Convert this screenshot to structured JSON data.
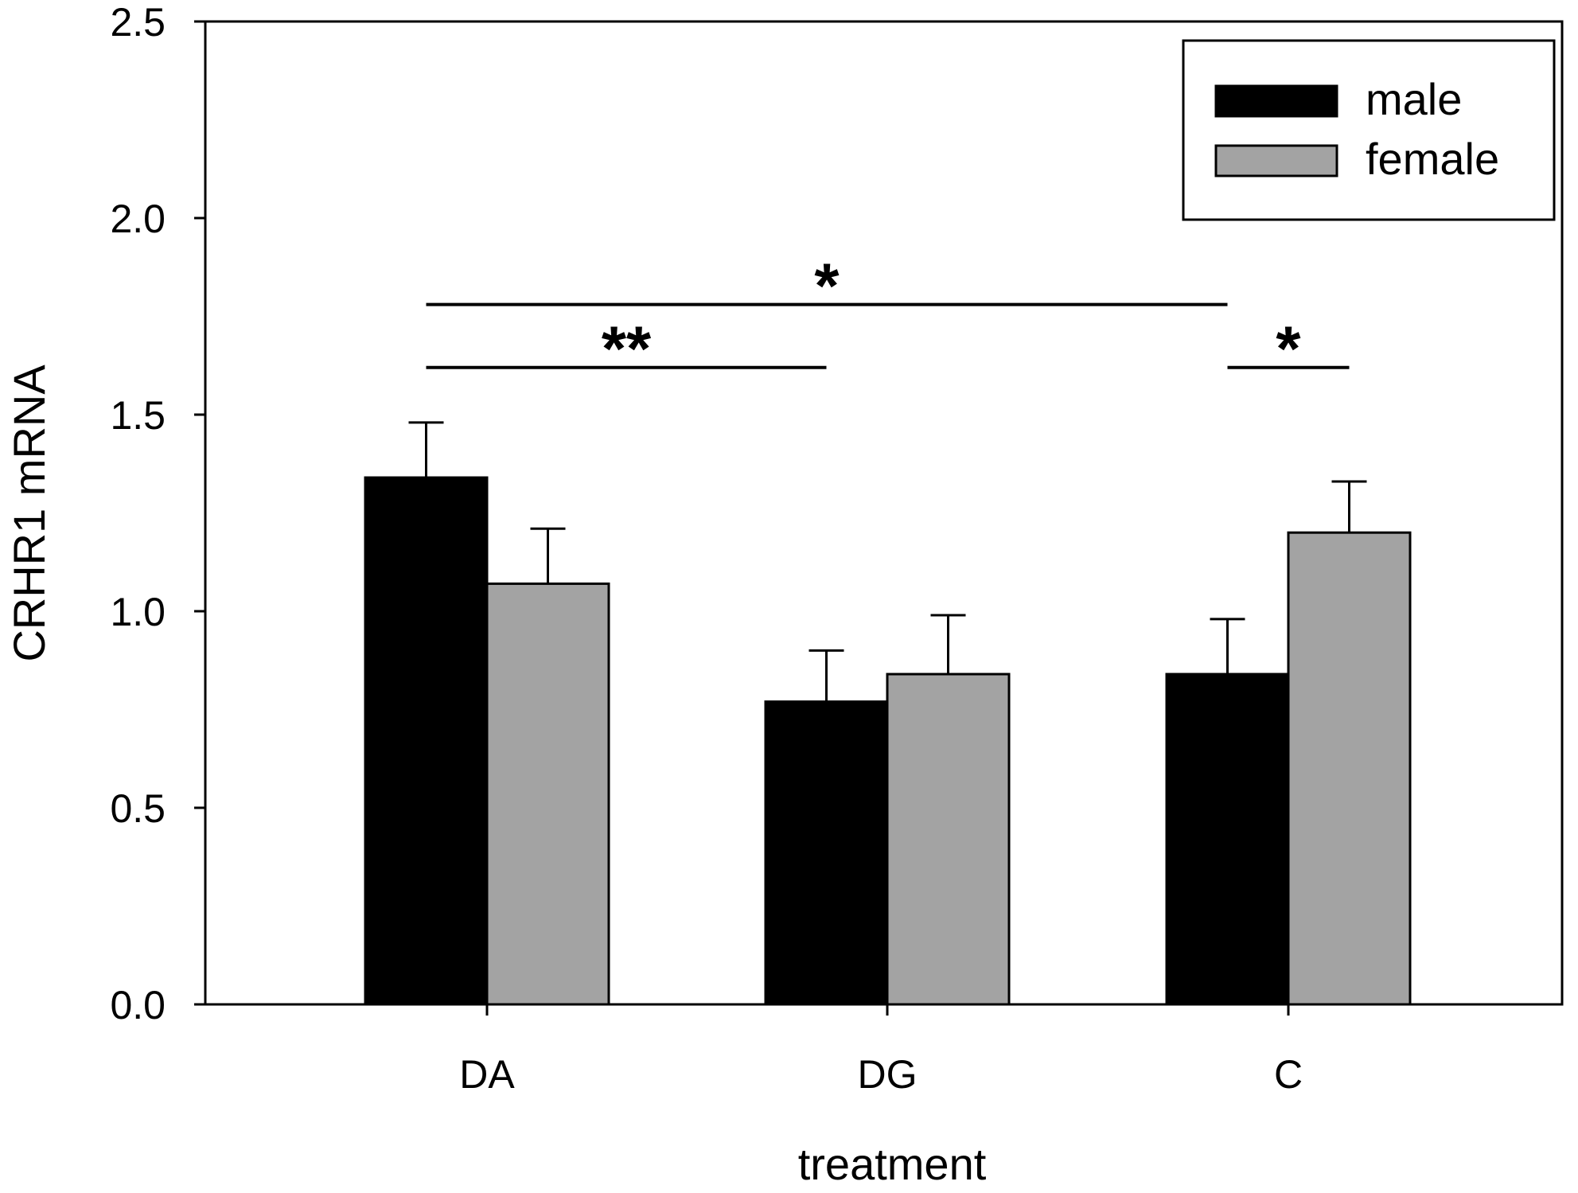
{
  "chart_data": {
    "type": "bar",
    "title": "",
    "xlabel": "treatment",
    "ylabel": "CRHR1 mRNA",
    "categories": [
      "DA",
      "DG",
      "C"
    ],
    "ylim": [
      0,
      2.5
    ],
    "yticks": [
      "0.0",
      "0.5",
      "1.0",
      "1.5",
      "2.0",
      "2.5"
    ],
    "ytick_values": [
      0,
      0.5,
      1.0,
      1.5,
      2.0,
      2.5
    ],
    "grid": false,
    "legend_position": "top-right",
    "series": [
      {
        "name": "male",
        "color": "#000000",
        "values": [
          1.34,
          0.77,
          0.84
        ],
        "errors": [
          0.14,
          0.13,
          0.14
        ]
      },
      {
        "name": "female",
        "color": "#a3a3a3",
        "values": [
          1.07,
          0.84,
          1.2
        ],
        "errors": [
          0.14,
          0.15,
          0.13
        ]
      }
    ],
    "annotations": [
      {
        "label": "*",
        "y": 1.78,
        "from": {
          "category": 0,
          "series": 0
        },
        "to": {
          "category": 2,
          "series": 0
        }
      },
      {
        "label": "**",
        "y": 1.62,
        "from": {
          "category": 0,
          "series": 0
        },
        "to": {
          "category": 1,
          "series": 0
        }
      },
      {
        "label": "*",
        "y": 1.62,
        "from": {
          "category": 2,
          "series": 0
        },
        "to": {
          "category": 2,
          "series": 1
        }
      }
    ]
  }
}
